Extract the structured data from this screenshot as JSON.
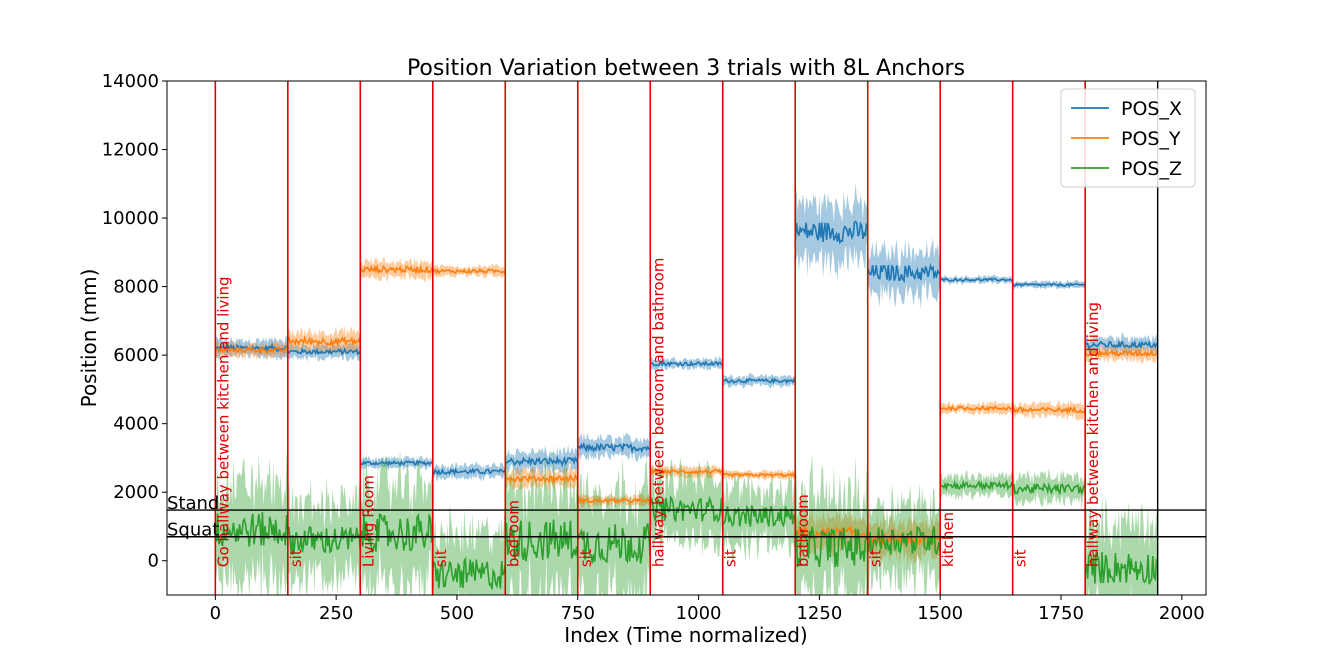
{
  "chart_data": {
    "type": "line",
    "title": "Position Variation between 3 trials with 8L Anchors",
    "xlabel": "Index (Time normalized)",
    "ylabel": "Position (mm)",
    "xlim": [
      -100,
      2050
    ],
    "ylim": [
      -1000,
      14000
    ],
    "xticks": [
      0,
      250,
      500,
      750,
      1000,
      1250,
      1500,
      1750,
      2000
    ],
    "yticks": [
      0,
      2000,
      4000,
      6000,
      8000,
      10000,
      12000,
      14000
    ],
    "grid": false,
    "legend_position": "top-right",
    "colors": {
      "POS_X": "#1f77b4",
      "POS_Y": "#ff7f0e",
      "POS_Z": "#2ca02c",
      "segment_line": "#e00000"
    },
    "series": [
      {
        "name": "POS_X",
        "shaded_band": true,
        "segments": [
          {
            "x_start": 0,
            "x_end": 150,
            "mean": 6200,
            "band": 250
          },
          {
            "x_start": 150,
            "x_end": 300,
            "mean": 6100,
            "band": 200
          },
          {
            "x_start": 300,
            "x_end": 450,
            "mean": 2850,
            "band": 150
          },
          {
            "x_start": 450,
            "x_end": 600,
            "mean": 2600,
            "band": 200
          },
          {
            "x_start": 600,
            "x_end": 750,
            "mean": 2900,
            "band": 300
          },
          {
            "x_start": 750,
            "x_end": 900,
            "mean": 3300,
            "band": 300
          },
          {
            "x_start": 900,
            "x_end": 1050,
            "mean": 5750,
            "band": 150
          },
          {
            "x_start": 1050,
            "x_end": 1200,
            "mean": 5250,
            "band": 150
          },
          {
            "x_start": 1200,
            "x_end": 1350,
            "mean": 9600,
            "band": 900
          },
          {
            "x_start": 1350,
            "x_end": 1500,
            "mean": 8400,
            "band": 700
          },
          {
            "x_start": 1500,
            "x_end": 1650,
            "mean": 8200,
            "band": 100
          },
          {
            "x_start": 1650,
            "x_end": 1800,
            "mean": 8050,
            "band": 100
          },
          {
            "x_start": 1800,
            "x_end": 1950,
            "mean": 6300,
            "band": 250
          }
        ]
      },
      {
        "name": "POS_Y",
        "shaded_band": true,
        "segments": [
          {
            "x_start": 0,
            "x_end": 150,
            "mean": 6150,
            "band": 200
          },
          {
            "x_start": 150,
            "x_end": 300,
            "mean": 6400,
            "band": 300
          },
          {
            "x_start": 300,
            "x_end": 450,
            "mean": 8500,
            "band": 250
          },
          {
            "x_start": 450,
            "x_end": 600,
            "mean": 8450,
            "band": 150
          },
          {
            "x_start": 600,
            "x_end": 750,
            "mean": 2400,
            "band": 250
          },
          {
            "x_start": 750,
            "x_end": 900,
            "mean": 1750,
            "band": 150
          },
          {
            "x_start": 900,
            "x_end": 1050,
            "mean": 2600,
            "band": 150
          },
          {
            "x_start": 1050,
            "x_end": 1200,
            "mean": 2500,
            "band": 120
          },
          {
            "x_start": 1200,
            "x_end": 1350,
            "mean": 800,
            "band": 500
          },
          {
            "x_start": 1350,
            "x_end": 1500,
            "mean": 600,
            "band": 500
          },
          {
            "x_start": 1500,
            "x_end": 1650,
            "mean": 4450,
            "band": 150
          },
          {
            "x_start": 1650,
            "x_end": 1800,
            "mean": 4400,
            "band": 200
          },
          {
            "x_start": 1800,
            "x_end": 1950,
            "mean": 6050,
            "band": 200
          }
        ]
      },
      {
        "name": "POS_Z",
        "shaded_band": true,
        "segments": [
          {
            "x_start": 0,
            "x_end": 150,
            "mean": 900,
            "band": 1500
          },
          {
            "x_start": 150,
            "x_end": 300,
            "mean": 600,
            "band": 1200
          },
          {
            "x_start": 300,
            "x_end": 450,
            "mean": 800,
            "band": 1600
          },
          {
            "x_start": 450,
            "x_end": 600,
            "mean": -400,
            "band": 1300
          },
          {
            "x_start": 600,
            "x_end": 750,
            "mean": 600,
            "band": 1800
          },
          {
            "x_start": 750,
            "x_end": 900,
            "mean": 500,
            "band": 1700
          },
          {
            "x_start": 900,
            "x_end": 1050,
            "mean": 1500,
            "band": 1000
          },
          {
            "x_start": 1050,
            "x_end": 1200,
            "mean": 1300,
            "band": 900
          },
          {
            "x_start": 1200,
            "x_end": 1350,
            "mean": 400,
            "band": 1700
          },
          {
            "x_start": 1350,
            "x_end": 1500,
            "mean": 600,
            "band": 1200
          },
          {
            "x_start": 1500,
            "x_end": 1650,
            "mean": 2200,
            "band": 300
          },
          {
            "x_start": 1650,
            "x_end": 1800,
            "mean": 2100,
            "band": 400
          },
          {
            "x_start": 1800,
            "x_end": 1950,
            "mean": -200,
            "band": 1400
          }
        ]
      }
    ],
    "segment_boundaries": [
      0,
      150,
      300,
      450,
      600,
      750,
      900,
      1050,
      1200,
      1350,
      1500,
      1650,
      1800
    ],
    "end_line": 1950,
    "segment_labels": [
      {
        "x": 0,
        "text": "Go hallway between kitchen and living"
      },
      {
        "x": 150,
        "text": "sit"
      },
      {
        "x": 300,
        "text": "Living Room"
      },
      {
        "x": 450,
        "text": "sit"
      },
      {
        "x": 600,
        "text": "bedroom"
      },
      {
        "x": 750,
        "text": "sit"
      },
      {
        "x": 900,
        "text": "hallway between bedroom and bathroom"
      },
      {
        "x": 1050,
        "text": "sit"
      },
      {
        "x": 1200,
        "text": "bathroom"
      },
      {
        "x": 1350,
        "text": "sit"
      },
      {
        "x": 1500,
        "text": "kitchen"
      },
      {
        "x": 1650,
        "text": "sit"
      },
      {
        "x": 1800,
        "text": "hallway between kitchen and living"
      }
    ],
    "reference_lines": [
      {
        "y": 1480,
        "label": "Stand"
      },
      {
        "y": 700,
        "label": "Squat"
      }
    ]
  }
}
